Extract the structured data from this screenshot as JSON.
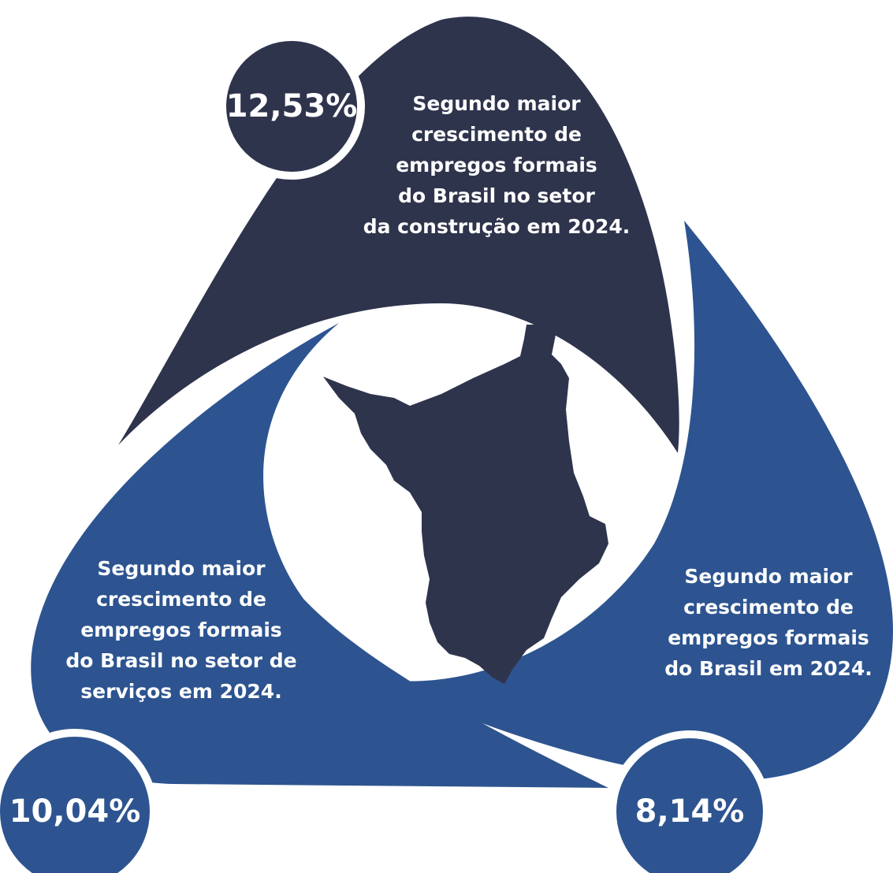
{
  "items": [
    {
      "value": "12,53%",
      "description": [
        "Segundo maior",
        "crescimento de",
        "empregos formais",
        "do Brasil no setor",
        "da construção em 2024."
      ]
    },
    {
      "value": "10,04%",
      "description": [
        "Segundo maior",
        "crescimento de",
        "empregos formais",
        "do Brasil no setor de",
        "serviços em 2024."
      ]
    },
    {
      "value": "8,14%",
      "description": [
        "Segundo maior",
        "crescimento de",
        "empregos formais",
        "do Brasil em 2024."
      ]
    }
  ]
}
